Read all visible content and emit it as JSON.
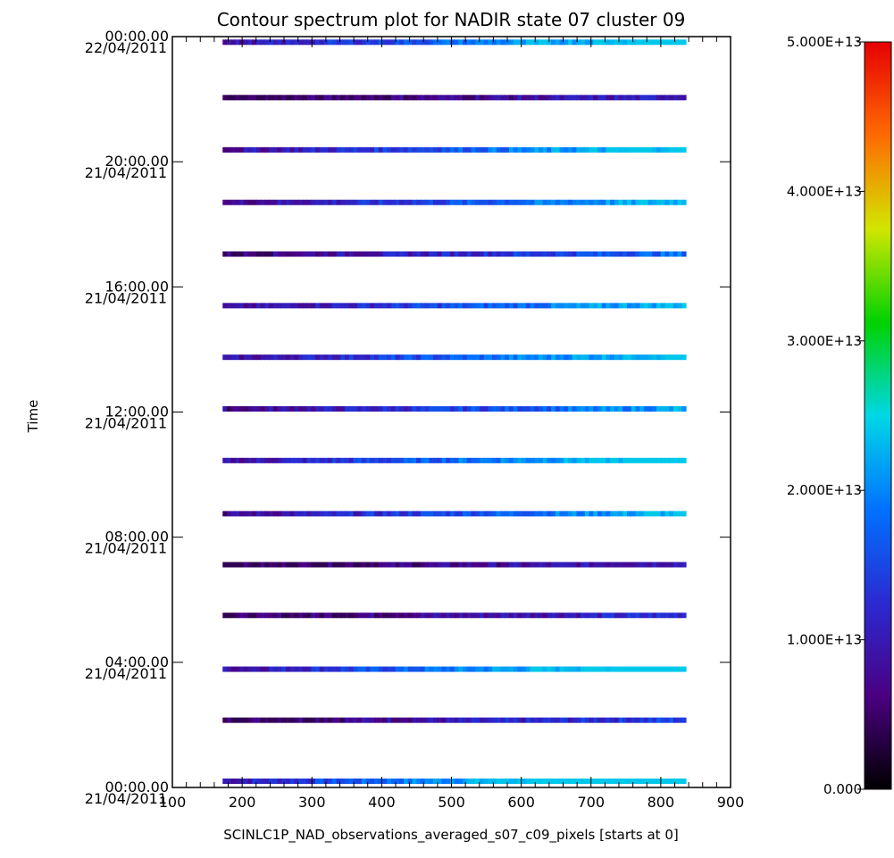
{
  "chart_data": {
    "type": "heatmap",
    "title": "Contour spectrum plot for NADIR state 07 cluster 09",
    "xlabel": "SCINLC1P_NAD_observations_averaged_s07_c09_pixels [starts at 0]",
    "ylabel": "Time",
    "xlim": [
      100,
      900
    ],
    "x_ticks": [
      "100",
      "200",
      "300",
      "400",
      "500",
      "600",
      "700",
      "800",
      "900"
    ],
    "ylim_hours": [
      0,
      24
    ],
    "y_ticks": [
      {
        "time": "00:00.00",
        "date": "21/04/2011",
        "hours": 0
      },
      {
        "time": "04:00.00",
        "date": "21/04/2011",
        "hours": 4
      },
      {
        "time": "08:00.00",
        "date": "21/04/2011",
        "hours": 8
      },
      {
        "time": "12:00.00",
        "date": "21/04/2011",
        "hours": 12
      },
      {
        "time": "16:00.00",
        "date": "21/04/2011",
        "hours": 16
      },
      {
        "time": "20:00.00",
        "date": "21/04/2011",
        "hours": 20
      },
      {
        "time": "00:00.00",
        "date": "22/04/2011",
        "hours": 24
      }
    ],
    "pixel_range": [
      172,
      836
    ],
    "orbits_hours": [
      0.2,
      2.15,
      3.78,
      5.5,
      7.12,
      8.75,
      10.45,
      12.1,
      13.75,
      15.4,
      17.05,
      18.7,
      20.38,
      22.05,
      23.82
    ],
    "orbit_mean_values": [
      18000000000000.0,
      8000000000000.0,
      16000000000000.0,
      7000000000000.0,
      6000000000000.0,
      13000000000000.0,
      15000000000000.0,
      12000000000000.0,
      14000000000000.0,
      13000000000000.0,
      10000000000000.0,
      13000000000000.0,
      14000000000000.0,
      6000000000000.0,
      15000000000000.0
    ],
    "colorbar": {
      "min": 0,
      "max": 50000000000000.0,
      "tick_labels": [
        "0.000",
        "1.000E+13",
        "2.000E+13",
        "3.000E+13",
        "4.000E+13",
        "5.000E+13"
      ],
      "tick_values": [
        0,
        10000000000000.0,
        20000000000000.0,
        30000000000000.0,
        40000000000000.0,
        50000000000000.0
      ],
      "colormap": [
        "#000000",
        "#4b0082",
        "#2a2ad2",
        "#0072ff",
        "#00d8e6",
        "#00d200",
        "#d2e600",
        "#ff6a00",
        "#e60000"
      ]
    }
  }
}
